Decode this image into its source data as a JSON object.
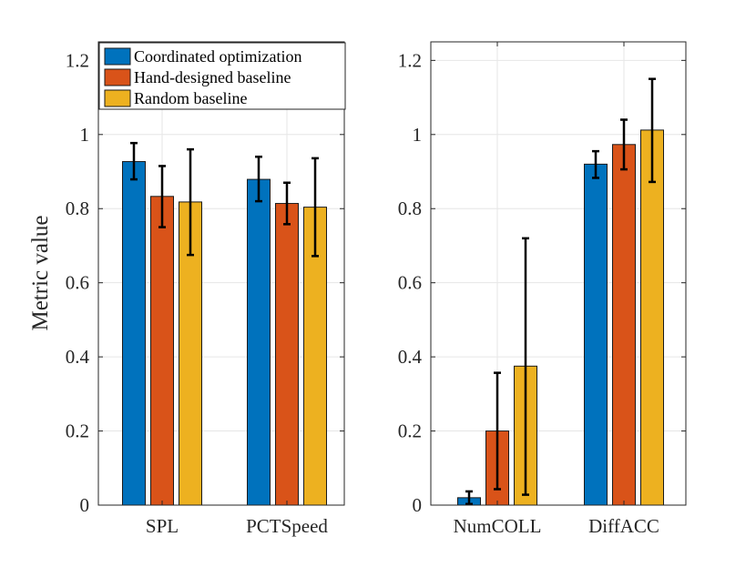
{
  "chart_data": [
    {
      "type": "bar",
      "panel": "left",
      "categories": [
        "SPL",
        "PCTSpeed"
      ],
      "ylabel": "Metric value",
      "ylim": [
        0,
        1.25
      ],
      "yticks": [
        "0",
        "0.2",
        "0.4",
        "0.6",
        "0.8",
        "1",
        "1.2"
      ],
      "ytick_values": [
        0,
        0.2,
        0.4,
        0.6,
        0.8,
        1.0,
        1.2
      ],
      "grid": true,
      "legend": {
        "placement": "top-left",
        "entries": [
          "Coordinated optimization",
          "Hand-designed baseline",
          "Random baseline"
        ]
      },
      "series": [
        {
          "name": "Coordinated optimization",
          "color": "#0072BD",
          "values": [
            0.927,
            0.879
          ],
          "err_low": [
            0.879,
            0.82
          ],
          "err_high": [
            0.977,
            0.94
          ]
        },
        {
          "name": "Hand-designed baseline",
          "color": "#D95319",
          "values": [
            0.833,
            0.814
          ],
          "err_low": [
            0.75,
            0.758
          ],
          "err_high": [
            0.915,
            0.87
          ]
        },
        {
          "name": "Random baseline",
          "color": "#EDB120",
          "values": [
            0.818,
            0.804
          ],
          "err_low": [
            0.675,
            0.672
          ],
          "err_high": [
            0.96,
            0.936
          ]
        }
      ]
    },
    {
      "type": "bar",
      "panel": "right",
      "categories": [
        "NumCOLL",
        "DiffACC"
      ],
      "ylabel": "",
      "ylim": [
        0,
        1.25
      ],
      "yticks": [
        "0",
        "0.2",
        "0.4",
        "0.6",
        "0.8",
        "1",
        "1.2"
      ],
      "ytick_values": [
        0,
        0.2,
        0.4,
        0.6,
        0.8,
        1.0,
        1.2
      ],
      "grid": true,
      "series": [
        {
          "name": "Coordinated optimization",
          "color": "#0072BD",
          "values": [
            0.02,
            0.92
          ],
          "err_low": [
            0.003,
            0.883
          ],
          "err_high": [
            0.037,
            0.955
          ]
        },
        {
          "name": "Hand-designed baseline",
          "color": "#D95319",
          "values": [
            0.2,
            0.973
          ],
          "err_low": [
            0.043,
            0.906
          ],
          "err_high": [
            0.357,
            1.04
          ]
        },
        {
          "name": "Random baseline",
          "color": "#EDB120",
          "values": [
            0.375,
            1.012
          ],
          "err_low": [
            0.028,
            0.872
          ],
          "err_high": [
            0.72,
            1.15
          ]
        }
      ]
    }
  ]
}
